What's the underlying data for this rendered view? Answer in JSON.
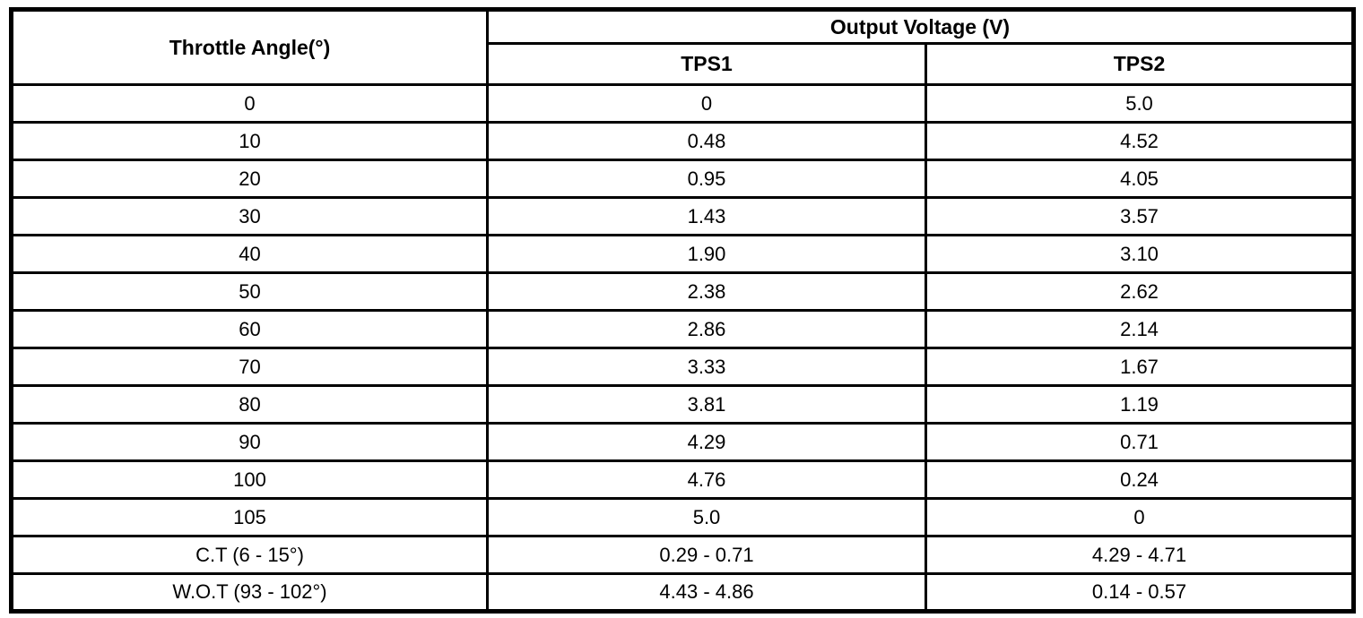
{
  "table": {
    "title_column_header": "Throttle Angle(°)",
    "group_header": "Output Voltage (V)",
    "sub_headers": [
      "TPS1",
      "TPS2"
    ],
    "rows": [
      [
        "0",
        "0",
        "5.0"
      ],
      [
        "10",
        "0.48",
        "4.52"
      ],
      [
        "20",
        "0.95",
        "4.05"
      ],
      [
        "30",
        "1.43",
        "3.57"
      ],
      [
        "40",
        "1.90",
        "3.10"
      ],
      [
        "50",
        "2.38",
        "2.62"
      ],
      [
        "60",
        "2.86",
        "2.14"
      ],
      [
        "70",
        "3.33",
        "1.67"
      ],
      [
        "80",
        "3.81",
        "1.19"
      ],
      [
        "90",
        "4.29",
        "0.71"
      ],
      [
        "100",
        "4.76",
        "0.24"
      ],
      [
        "105",
        "5.0",
        "0"
      ],
      [
        "C.T (6 - 15°)",
        "0.29 - 0.71",
        "4.29 - 4.71"
      ],
      [
        "W.O.T (93 - 102°)",
        "4.43 - 4.86",
        "0.14 - 0.57"
      ]
    ]
  },
  "chart_data": {
    "type": "table",
    "title": "Output Voltage (V) vs Throttle Angle(°)",
    "columns": [
      "Throttle Angle(°)",
      "TPS1",
      "TPS2"
    ],
    "categories": [
      "0",
      "10",
      "20",
      "30",
      "40",
      "50",
      "60",
      "70",
      "80",
      "90",
      "100",
      "105",
      "C.T (6 - 15°)",
      "W.O.T (93 - 102°)"
    ],
    "series": [
      {
        "name": "TPS1",
        "values": [
          "0",
          "0.48",
          "0.95",
          "1.43",
          "1.90",
          "2.38",
          "2.86",
          "3.33",
          "3.81",
          "4.29",
          "4.76",
          "5.0",
          "0.29 - 0.71",
          "4.43 - 4.86"
        ]
      },
      {
        "name": "TPS2",
        "values": [
          "5.0",
          "4.52",
          "4.05",
          "3.57",
          "3.10",
          "2.62",
          "2.14",
          "1.67",
          "1.19",
          "0.71",
          "0.24",
          "0",
          "4.29 - 4.71",
          "0.14 - 0.57"
        ]
      }
    ]
  },
  "colors": {
    "background": "#ffffff",
    "border": "#000000",
    "text": "#000000"
  }
}
